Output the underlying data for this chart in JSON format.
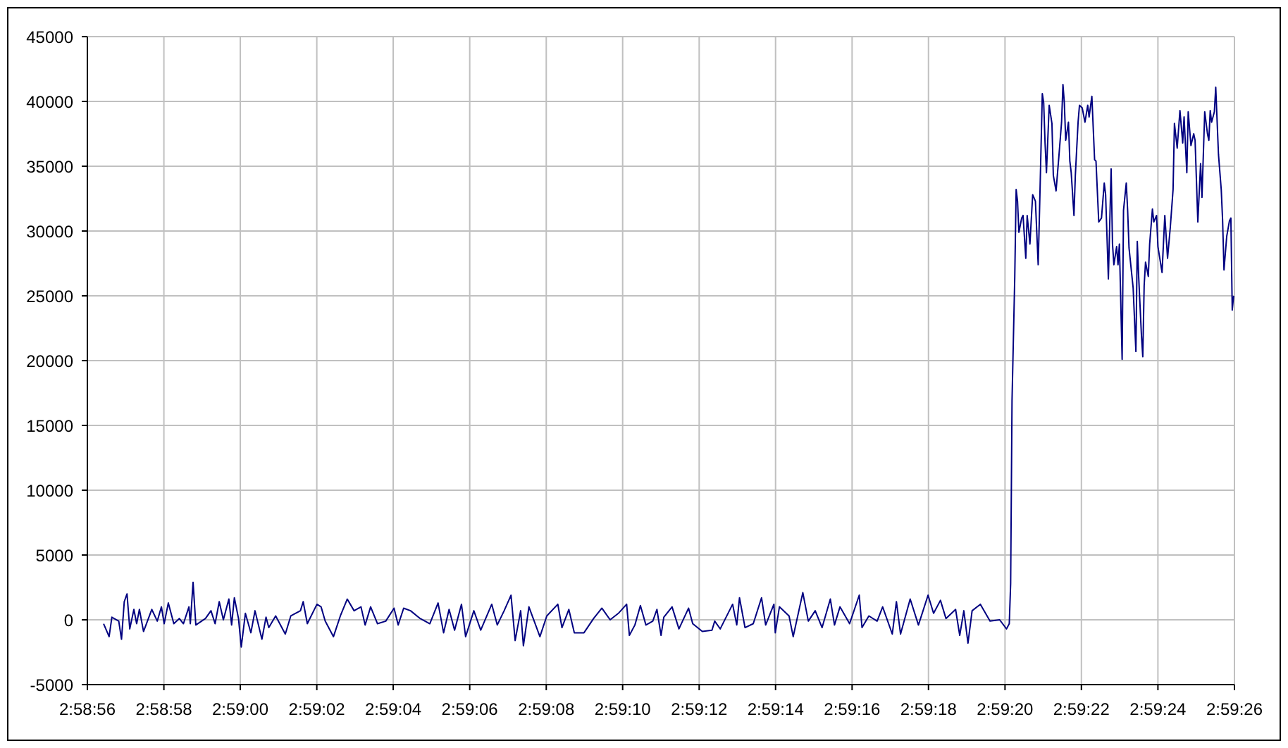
{
  "chart_data": {
    "type": "line",
    "xlim": [
      2.982222,
      2.990556
    ],
    "xticks": [
      {
        "value": 2.982222,
        "label": "2:58:56"
      },
      {
        "value": 2.982778,
        "label": "2:58:58"
      },
      {
        "value": 2.983333,
        "label": "2:59:00"
      },
      {
        "value": 2.983889,
        "label": "2:59:02"
      },
      {
        "value": 2.984444,
        "label": "2:59:04"
      },
      {
        "value": 2.985,
        "label": "2:59:06"
      },
      {
        "value": 2.985556,
        "label": "2:59:08"
      },
      {
        "value": 2.986111,
        "label": "2:59:10"
      },
      {
        "value": 2.986667,
        "label": "2:59:12"
      },
      {
        "value": 2.987222,
        "label": "2:59:14"
      },
      {
        "value": 2.987778,
        "label": "2:59:16"
      },
      {
        "value": 2.988333,
        "label": "2:59:18"
      },
      {
        "value": 2.988889,
        "label": "2:59:20"
      },
      {
        "value": 2.989444,
        "label": "2:59:22"
      },
      {
        "value": 2.99,
        "label": "2:59:24"
      },
      {
        "value": 2.990556,
        "label": "2:59:26"
      }
    ],
    "ylim": [
      -5000,
      45000
    ],
    "yticks": [
      -5000,
      0,
      5000,
      10000,
      15000,
      20000,
      25000,
      30000,
      35000,
      40000,
      45000
    ],
    "grid": true,
    "x": [
      2.98234,
      2.98238,
      2.9824,
      2.98245,
      2.98247,
      2.98249,
      2.98251,
      2.98253,
      2.98256,
      2.98258,
      2.9826,
      2.98263,
      2.98269,
      2.98273,
      2.98276,
      2.98278,
      2.98281,
      2.98285,
      2.98289,
      2.98292,
      2.98296,
      2.98297,
      2.98299,
      2.98301,
      2.98308,
      2.98312,
      2.98315,
      2.98318,
      2.98321,
      2.98325,
      2.98327,
      2.98329,
      2.98332,
      2.98334,
      2.98337,
      2.98341,
      2.98344,
      2.98349,
      2.98352,
      2.98354,
      2.98359,
      2.98366,
      2.9837,
      2.98377,
      2.98379,
      2.98382,
      2.98389,
      2.98392,
      2.98395,
      2.98401,
      2.98406,
      2.98411,
      2.98416,
      2.98421,
      2.98424,
      2.98428,
      2.98433,
      2.98439,
      2.98445,
      2.98448,
      2.98452,
      2.98457,
      2.98464,
      2.98471,
      2.98477,
      2.98481,
      2.98485,
      2.98489,
      2.98494,
      2.98497,
      2.98503,
      2.98508,
      2.98516,
      2.9852,
      2.98525,
      2.9853,
      2.98533,
      2.98537,
      2.98539,
      2.98543,
      2.98551,
      2.98556,
      2.98564,
      2.98567,
      2.98572,
      2.98576,
      2.98583,
      2.9859,
      2.98596,
      2.98602,
      2.98608,
      2.98614,
      2.98616,
      2.9862,
      2.98624,
      2.98628,
      2.98633,
      2.98636,
      2.98639,
      2.98641,
      2.98647,
      2.98652,
      2.98659,
      2.98662,
      2.98669,
      2.98676,
      2.98678,
      2.98682,
      2.98691,
      2.98694,
      2.98696,
      2.987,
      2.98706,
      2.98712,
      2.98715,
      2.98721,
      2.98722,
      2.98725,
      2.98732,
      2.98735,
      2.98742,
      2.98746,
      2.98751,
      2.98756,
      2.98762,
      2.98765,
      2.98769,
      2.98776,
      2.98783,
      2.98785,
      2.9879,
      2.98796,
      2.988,
      2.98807,
      2.9881,
      2.98813,
      2.9882,
      2.98826,
      2.98833,
      2.98837,
      2.98842,
      2.98846,
      2.98853,
      2.98856,
      2.98859,
      2.98862,
      2.98865,
      2.98871,
      2.98878,
      2.98885,
      2.9889,
      2.98892,
      2.98893,
      2.98894,
      2.98896,
      2.98897,
      2.98898,
      2.98899,
      2.98901,
      2.98902,
      2.98904,
      2.98905,
      2.98907,
      2.98909,
      2.98911,
      2.98913,
      2.98914,
      2.98916,
      2.98917,
      2.98918,
      2.98919,
      2.98921,
      2.98923,
      2.98924,
      2.98926,
      2.98928,
      2.9893,
      2.98931,
      2.98932,
      2.98933,
      2.98935,
      2.98936,
      2.98937,
      2.98939,
      2.9894,
      2.98942,
      2.98943,
      2.98945,
      2.98947,
      2.98949,
      2.9895,
      2.98952,
      2.98954,
      2.98955,
      2.98957,
      2.98959,
      2.98961,
      2.98962,
      2.98964,
      2.98966,
      2.98967,
      2.98968,
      2.9897,
      2.98971,
      2.98972,
      2.98974,
      2.98975,
      2.98977,
      2.98978,
      2.98979,
      2.98982,
      2.98984,
      2.98985,
      2.98986,
      2.98988,
      2.98989,
      2.9899,
      2.98991,
      2.98993,
      2.98994,
      2.98996,
      2.98997,
      2.98999,
      2.99,
      2.99003,
      2.99005,
      2.99007,
      2.99009,
      2.99011,
      2.99012,
      2.99014,
      2.99016,
      2.99018,
      2.99019,
      2.99021,
      2.99022,
      2.99024,
      2.99026,
      2.99027,
      2.99029,
      2.99031,
      2.99032,
      2.99034,
      2.99036,
      2.99037,
      2.99038,
      2.99039,
      2.99041,
      2.99042,
      2.99044,
      2.99046,
      2.99047,
      2.99048,
      2.9905,
      2.99052,
      2.99053,
      2.99054,
      2.99055
    ],
    "series": [
      {
        "color": "#000080",
        "values": [
          -300,
          -1300,
          200,
          -100,
          -1500,
          1400,
          2000,
          -700,
          800,
          -300,
          800,
          -900,
          800,
          -100,
          1000,
          -300,
          1300,
          -300,
          100,
          -300,
          1000,
          -300,
          2900,
          -400,
          100,
          700,
          -300,
          1400,
          0,
          1600,
          -400,
          1700,
          100,
          -2100,
          500,
          -1000,
          700,
          -1500,
          200,
          -600,
          300,
          -1100,
          300,
          700,
          1400,
          -300,
          1200,
          1000,
          -100,
          -1300,
          300,
          1600,
          700,
          1000,
          -400,
          1000,
          -300,
          -100,
          900,
          -400,
          900,
          700,
          100,
          -300,
          1300,
          -1000,
          800,
          -800,
          1200,
          -1300,
          700,
          -800,
          1200,
          -400,
          700,
          1900,
          -1600,
          700,
          -2000,
          1000,
          -1300,
          300,
          1200,
          -600,
          800,
          -1000,
          -1000,
          100,
          900,
          0,
          500,
          1200,
          -1200,
          -400,
          1100,
          -400,
          -100,
          800,
          -1200,
          200,
          1000,
          -700,
          900,
          -300,
          -900,
          -800,
          -100,
          -700,
          1200,
          -400,
          1700,
          -600,
          -300,
          1700,
          -400,
          1200,
          -1000,
          1000,
          300,
          -1300,
          2100,
          -100,
          700,
          -600,
          1600,
          -400,
          1000,
          -300,
          1900,
          -600,
          300,
          -100,
          1000,
          -1100,
          1400,
          -1100,
          1600,
          -400,
          1900,
          500,
          1500,
          100,
          800,
          -1200,
          700,
          -1800,
          700,
          1200,
          -100,
          0,
          -700,
          -300,
          2800,
          16900,
          26500,
          33200,
          32300,
          29900,
          31000,
          31200,
          27900,
          31200,
          29000,
          32800,
          32300,
          27400,
          31600,
          40600,
          39900,
          36800,
          34500,
          39700,
          38300,
          34300,
          33100,
          35700,
          38400,
          41300,
          39900,
          37000,
          38400,
          35400,
          34500,
          31200,
          34300,
          38400,
          39700,
          39500,
          38400,
          39700,
          38800,
          40400,
          35500,
          35400,
          30700,
          31000,
          33700,
          32800,
          26300,
          34800,
          29000,
          27400,
          28800,
          27400,
          29000,
          20100,
          31600,
          33700,
          31600,
          28700,
          25600,
          20700,
          29200,
          26500,
          22000,
          20300,
          25800,
          27600,
          26500,
          29000,
          31700,
          30700,
          31200,
          28800,
          26800,
          31200,
          27900,
          30300,
          33200,
          38300,
          36400,
          39300,
          36800,
          38800,
          34500,
          39200,
          36600,
          37500,
          37000,
          30700,
          35200,
          32600,
          39200,
          37500,
          37000,
          39300,
          38400,
          39200,
          41100,
          35900,
          33200,
          30800,
          27000,
          29600,
          30800,
          31000,
          23900,
          25000
        ]
      }
    ]
  }
}
